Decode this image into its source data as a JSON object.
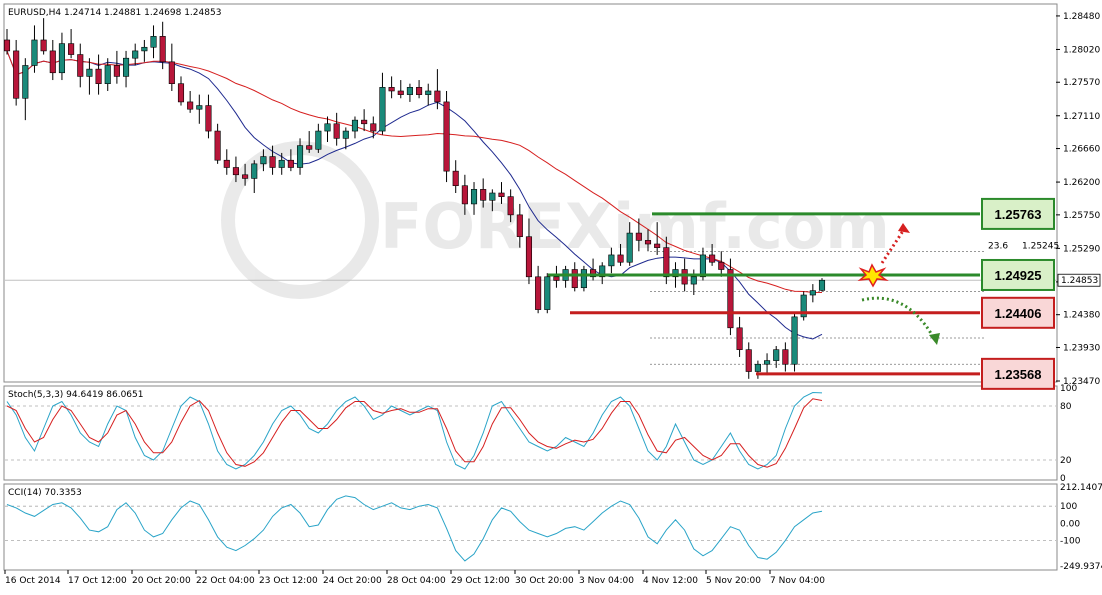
{
  "chart_data": {
    "type": "candlestick",
    "symbol_header": "EURUSD,H4  1.24714  1.24881  1.24698  1.24853",
    "current_price": "1.24853",
    "main_ylim": [
      1.2347,
      1.2863
    ],
    "y_ticks": [
      "1.28480",
      "1.28020",
      "1.27570",
      "1.27110",
      "1.26660",
      "1.26200",
      "1.25750",
      "1.25290",
      "1.24830",
      "1.24380",
      "1.23930",
      "1.23470"
    ],
    "x_ticks": [
      "16 Oct 2014",
      "17 Oct 12:00",
      "20 Oct 20:00",
      "22 Oct 04:00",
      "23 Oct 12:00",
      "24 Oct 20:00",
      "28 Oct 04:00",
      "29 Oct 12:00",
      "30 Oct 20:00",
      "3 Nov 04:00",
      "4 Nov 12:00",
      "5 Nov 20:00",
      "7 Nov 04:00"
    ],
    "candles": [
      [
        1.2815,
        1.283,
        1.2795,
        1.28
      ],
      [
        1.28,
        1.2815,
        1.2725,
        1.2735
      ],
      [
        1.2735,
        1.279,
        1.2705,
        1.278
      ],
      [
        1.278,
        1.2835,
        1.277,
        1.2815
      ],
      [
        1.2815,
        1.2845,
        1.2795,
        1.28
      ],
      [
        1.28,
        1.2815,
        1.276,
        1.277
      ],
      [
        1.277,
        1.2825,
        1.276,
        1.281
      ],
      [
        1.281,
        1.283,
        1.279,
        1.2795
      ],
      [
        1.2795,
        1.281,
        1.275,
        1.2765
      ],
      [
        1.2765,
        1.279,
        1.274,
        1.2775
      ],
      [
        1.2775,
        1.2795,
        1.274,
        1.2755
      ],
      [
        1.2755,
        1.279,
        1.2745,
        1.278
      ],
      [
        1.278,
        1.28,
        1.2755,
        1.2765
      ],
      [
        1.2765,
        1.28,
        1.275,
        1.279
      ],
      [
        1.279,
        1.281,
        1.278,
        1.28
      ],
      [
        1.28,
        1.2815,
        1.2785,
        1.2805
      ],
      [
        1.2805,
        1.2835,
        1.279,
        1.282
      ],
      [
        1.282,
        1.284,
        1.2775,
        1.2785
      ],
      [
        1.2785,
        1.281,
        1.2745,
        1.2755
      ],
      [
        1.2755,
        1.2765,
        1.2725,
        1.273
      ],
      [
        1.273,
        1.2745,
        1.2715,
        1.272
      ],
      [
        1.272,
        1.274,
        1.27,
        1.2725
      ],
      [
        1.2725,
        1.274,
        1.268,
        1.269
      ],
      [
        1.269,
        1.27,
        1.2645,
        1.265
      ],
      [
        1.265,
        1.2665,
        1.263,
        1.264
      ],
      [
        1.264,
        1.2655,
        1.262,
        1.263
      ],
      [
        1.263,
        1.2645,
        1.2615,
        1.2625
      ],
      [
        1.2625,
        1.265,
        1.2605,
        1.2645
      ],
      [
        1.2645,
        1.2665,
        1.2635,
        1.2655
      ],
      [
        1.2655,
        1.267,
        1.263,
        1.264
      ],
      [
        1.264,
        1.266,
        1.263,
        1.265
      ],
      [
        1.265,
        1.2665,
        1.2635,
        1.264
      ],
      [
        1.264,
        1.268,
        1.263,
        1.267
      ],
      [
        1.267,
        1.269,
        1.266,
        1.2665
      ],
      [
        1.2665,
        1.27,
        1.266,
        1.269
      ],
      [
        1.269,
        1.271,
        1.2675,
        1.27
      ],
      [
        1.27,
        1.2715,
        1.267,
        1.268
      ],
      [
        1.268,
        1.2695,
        1.2665,
        1.269
      ],
      [
        1.269,
        1.271,
        1.268,
        1.2705
      ],
      [
        1.2705,
        1.272,
        1.269,
        1.27
      ],
      [
        1.27,
        1.271,
        1.268,
        1.269
      ],
      [
        1.269,
        1.277,
        1.2685,
        1.275
      ],
      [
        1.275,
        1.2765,
        1.2735,
        1.2745
      ],
      [
        1.2745,
        1.276,
        1.2735,
        1.274
      ],
      [
        1.274,
        1.2755,
        1.273,
        1.275
      ],
      [
        1.275,
        1.276,
        1.2735,
        1.274
      ],
      [
        1.274,
        1.2755,
        1.2725,
        1.2745
      ],
      [
        1.2745,
        1.2775,
        1.272,
        1.273
      ],
      [
        1.273,
        1.2745,
        1.262,
        1.2635
      ],
      [
        1.2635,
        1.265,
        1.2605,
        1.2615
      ],
      [
        1.2615,
        1.263,
        1.2575,
        1.259
      ],
      [
        1.259,
        1.262,
        1.2575,
        1.261
      ],
      [
        1.261,
        1.2625,
        1.2585,
        1.2595
      ],
      [
        1.2595,
        1.261,
        1.258,
        1.2605
      ],
      [
        1.2605,
        1.262,
        1.259,
        1.26
      ],
      [
        1.26,
        1.261,
        1.2565,
        1.2575
      ],
      [
        1.2575,
        1.259,
        1.253,
        1.2545
      ],
      [
        1.2545,
        1.257,
        1.248,
        1.249
      ],
      [
        1.249,
        1.2505,
        1.244,
        1.2445
      ],
      [
        1.2445,
        1.2495,
        1.244,
        1.249
      ],
      [
        1.249,
        1.2505,
        1.2475,
        1.2485
      ],
      [
        1.2485,
        1.2505,
        1.2475,
        1.25
      ],
      [
        1.25,
        1.251,
        1.247,
        1.2475
      ],
      [
        1.2475,
        1.2505,
        1.247,
        1.25
      ],
      [
        1.25,
        1.2515,
        1.2485,
        1.249
      ],
      [
        1.249,
        1.251,
        1.248,
        1.2505
      ],
      [
        1.2505,
        1.253,
        1.2495,
        1.252
      ],
      [
        1.252,
        1.2535,
        1.2505,
        1.251
      ],
      [
        1.251,
        1.2565,
        1.2505,
        1.255
      ],
      [
        1.255,
        1.257,
        1.2525,
        1.254
      ],
      [
        1.254,
        1.2555,
        1.2525,
        1.2535
      ],
      [
        1.2535,
        1.2565,
        1.252,
        1.253
      ],
      [
        1.253,
        1.2545,
        1.248,
        1.249
      ],
      [
        1.249,
        1.251,
        1.2475,
        1.25
      ],
      [
        1.25,
        1.2515,
        1.247,
        1.248
      ],
      [
        1.248,
        1.25,
        1.2465,
        1.249
      ],
      [
        1.249,
        1.253,
        1.2485,
        1.252
      ],
      [
        1.252,
        1.2535,
        1.2505,
        1.251
      ],
      [
        1.251,
        1.2525,
        1.249,
        1.25
      ],
      [
        1.25,
        1.2515,
        1.241,
        1.242
      ],
      [
        1.242,
        1.2435,
        1.238,
        1.239
      ],
      [
        1.239,
        1.24,
        1.235,
        1.236
      ],
      [
        1.236,
        1.2375,
        1.235,
        1.237
      ],
      [
        1.237,
        1.2385,
        1.2355,
        1.2375
      ],
      [
        1.2375,
        1.2395,
        1.2365,
        1.239
      ],
      [
        1.239,
        1.24,
        1.236,
        1.237
      ],
      [
        1.237,
        1.244,
        1.236,
        1.2435
      ],
      [
        1.2435,
        1.247,
        1.243,
        1.2465
      ],
      [
        1.2465,
        1.248,
        1.2455,
        1.2471
      ],
      [
        1.24714,
        1.24881,
        1.24698,
        1.24853
      ]
    ],
    "ma_fast_name": "blue MA",
    "ma_slow_name": "red MA",
    "levels": [
      {
        "label": "1.25763",
        "price": 1.25763,
        "kind": "resistance"
      },
      {
        "label": "1.24925",
        "price": 1.24925,
        "kind": "resistance"
      },
      {
        "label": "1.24406",
        "price": 1.24406,
        "kind": "support"
      },
      {
        "label": "1.23568",
        "price": 1.23568,
        "kind": "support"
      }
    ],
    "fib": {
      "label_a": "23.6",
      "label_b": "1.25245",
      "price": 1.25245
    },
    "stoch": {
      "header": "Stoch(5,3,3) 94.6419 86.0651",
      "ylim": [
        0,
        100
      ],
      "ticks": [
        "100",
        "80",
        "20",
        "0"
      ],
      "main": [
        85,
        70,
        45,
        30,
        55,
        80,
        85,
        70,
        50,
        40,
        35,
        60,
        80,
        75,
        45,
        25,
        20,
        30,
        55,
        80,
        90,
        85,
        60,
        30,
        15,
        10,
        15,
        25,
        40,
        60,
        75,
        80,
        70,
        55,
        50,
        60,
        75,
        85,
        90,
        80,
        65,
        70,
        80,
        75,
        70,
        75,
        80,
        75,
        40,
        15,
        10,
        25,
        50,
        80,
        85,
        70,
        55,
        40,
        35,
        30,
        35,
        45,
        40,
        35,
        50,
        70,
        85,
        90,
        80,
        55,
        30,
        20,
        35,
        60,
        40,
        20,
        15,
        20,
        35,
        50,
        30,
        15,
        10,
        15,
        25,
        55,
        80,
        90,
        95,
        94.6
      ],
      "signal": [
        80,
        75,
        55,
        40,
        45,
        65,
        80,
        75,
        60,
        45,
        40,
        50,
        70,
        75,
        60,
        40,
        28,
        28,
        40,
        62,
        80,
        86,
        75,
        50,
        28,
        15,
        13,
        18,
        28,
        45,
        62,
        75,
        75,
        65,
        55,
        55,
        65,
        78,
        85,
        85,
        75,
        72,
        75,
        77,
        73,
        73,
        77,
        77,
        55,
        30,
        18,
        18,
        35,
        60,
        78,
        78,
        65,
        50,
        40,
        35,
        33,
        38,
        42,
        40,
        43,
        55,
        72,
        85,
        85,
        70,
        48,
        30,
        28,
        42,
        45,
        35,
        25,
        20,
        25,
        38,
        38,
        25,
        15,
        12,
        16,
        33,
        55,
        78,
        88,
        86.1
      ]
    },
    "cci": {
      "header": "CCI(14) 70.3353",
      "ylim": [
        -249.9374,
        212.1407
      ],
      "ticks": [
        "212.1407",
        "100",
        "0.00",
        "-100",
        "-249.9374"
      ],
      "values": [
        110,
        90,
        60,
        40,
        75,
        110,
        120,
        90,
        30,
        -40,
        -50,
        -20,
        80,
        120,
        60,
        -40,
        -80,
        -60,
        20,
        90,
        130,
        110,
        20,
        -80,
        -140,
        -160,
        -130,
        -90,
        -40,
        40,
        90,
        110,
        60,
        -20,
        -10,
        80,
        140,
        160,
        150,
        110,
        80,
        100,
        120,
        90,
        80,
        100,
        110,
        90,
        -30,
        -160,
        -220,
        -180,
        -90,
        20,
        90,
        70,
        10,
        -40,
        -60,
        -80,
        -60,
        -30,
        -20,
        -40,
        10,
        60,
        100,
        130,
        110,
        30,
        -80,
        -120,
        -40,
        20,
        -40,
        -150,
        -190,
        -160,
        -90,
        -20,
        -40,
        -130,
        -200,
        -210,
        -170,
        -100,
        -20,
        20,
        60,
        70.3
      ]
    }
  }
}
